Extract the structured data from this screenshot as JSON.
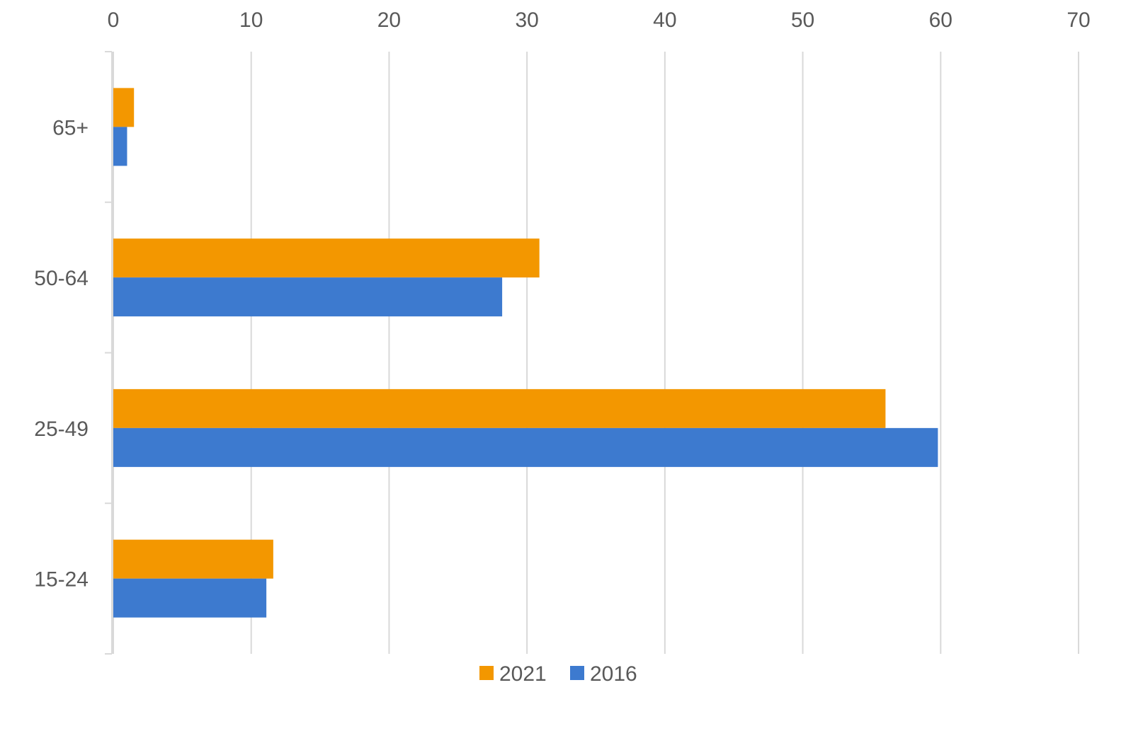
{
  "chart_data": {
    "type": "bar",
    "orientation": "horizontal",
    "title": "",
    "xlabel": "",
    "ylabel": "",
    "categories": [
      "65+",
      "50-64",
      "25-49",
      "15-24"
    ],
    "series": [
      {
        "name": "2021",
        "color": "#F39700",
        "values": [
          1.5,
          30.9,
          56.0,
          11.6
        ]
      },
      {
        "name": "2016",
        "color": "#3D7ACF",
        "values": [
          1.0,
          28.2,
          59.8,
          11.1
        ]
      }
    ],
    "xlim": [
      0,
      70
    ],
    "xticks": [
      0,
      10,
      20,
      30,
      40,
      50,
      60,
      70
    ],
    "x_axis_position": "top",
    "grid": true,
    "legend_position": "bottom"
  }
}
